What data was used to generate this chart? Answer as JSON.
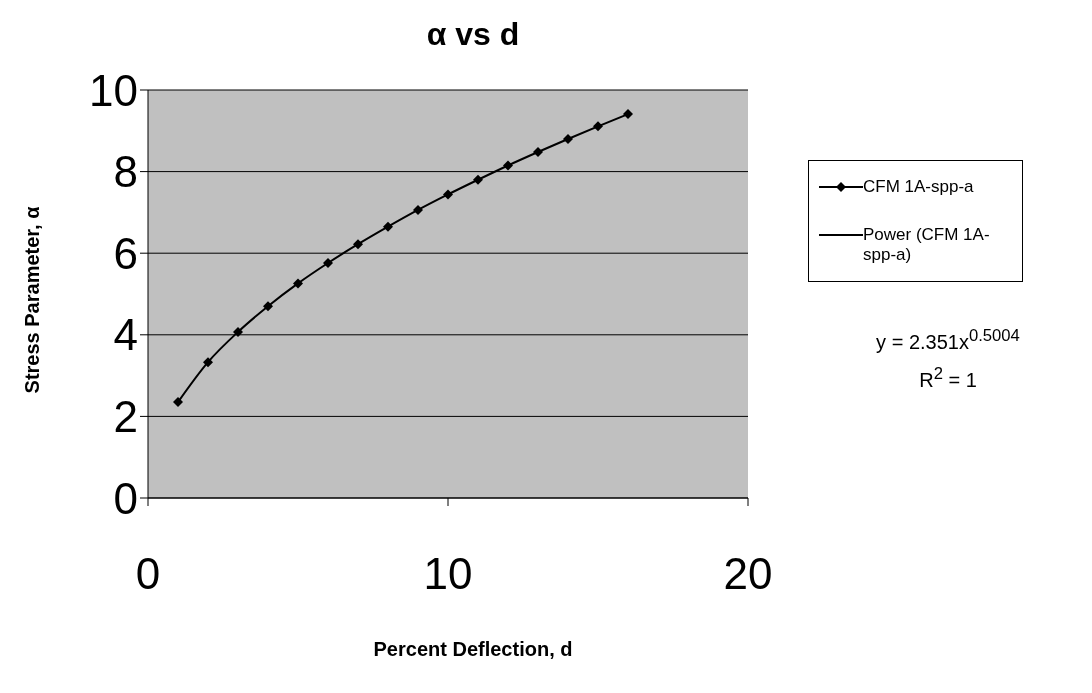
{
  "chart_data": {
    "type": "line",
    "title": "α vs d",
    "xlabel": "Percent Deflection, d",
    "ylabel": "Stress Parameter, α",
    "xlim": [
      0,
      20
    ],
    "xticks": [
      0,
      10,
      20
    ],
    "ylim": [
      0,
      10
    ],
    "yticks": [
      0,
      2,
      4,
      6,
      8,
      10
    ],
    "grid": "y",
    "legend": "right",
    "series": [
      {
        "name": "CFM 1A-spp-a",
        "type": "scatter",
        "color": "#000000",
        "marker": "diamond",
        "x": [
          1,
          2,
          3,
          4,
          5,
          6,
          7,
          8,
          9,
          10,
          11,
          12,
          13,
          14,
          15,
          16
        ],
        "values": [
          2.35,
          3.33,
          4.07,
          4.7,
          5.26,
          5.76,
          6.22,
          6.65,
          7.06,
          7.44,
          7.8,
          8.15,
          8.48,
          8.8,
          9.11,
          9.41
        ]
      },
      {
        "name": "Power (CFM 1A-spp-a)",
        "color": "#000000",
        "marker": "none",
        "x": [
          1,
          2,
          3,
          4,
          5,
          6,
          7,
          8,
          9,
          10,
          11,
          12,
          13,
          14,
          15,
          16
        ],
        "values": [
          2.35,
          3.33,
          4.07,
          4.7,
          5.26,
          5.76,
          6.22,
          6.65,
          7.06,
          7.44,
          7.8,
          8.15,
          8.48,
          8.8,
          9.11,
          9.41
        ]
      }
    ],
    "annotations": [
      "y = 2.351x$^{0.5004}$",
      "R$^{2}$ = 1"
    ]
  }
}
